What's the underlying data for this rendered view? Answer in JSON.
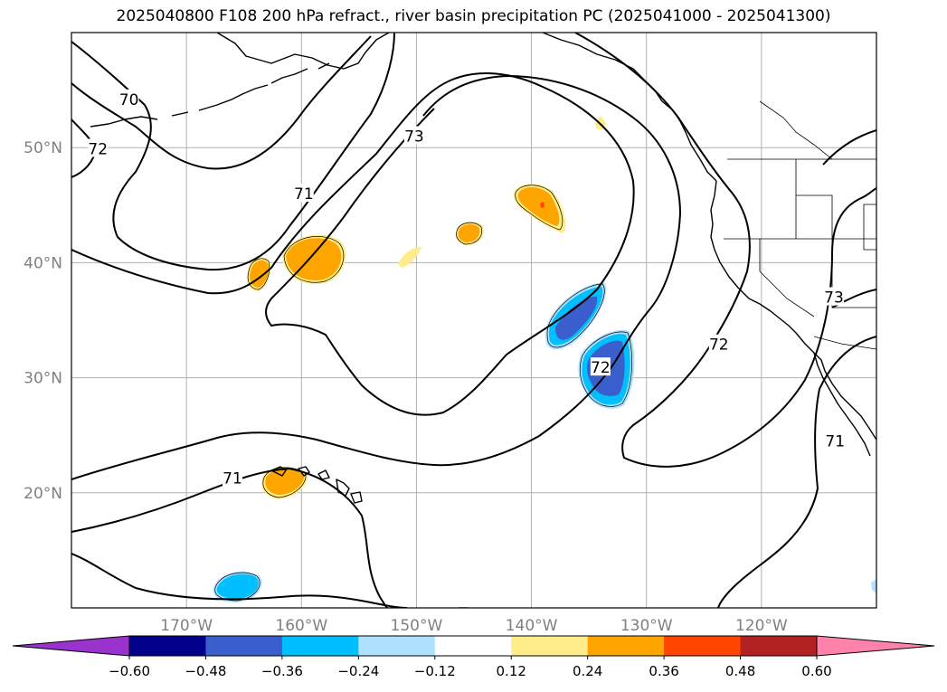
{
  "title": "2025040800 F108 200 hPa refract., river basin precipitation PC (2025041000 - 2025041300)",
  "map": {
    "region": {
      "lon_min": -180,
      "lon_max": -110,
      "lat_min": 10,
      "lat_max": 60
    },
    "lat_ticks": [
      {
        "value": 50,
        "label": "50°N"
      },
      {
        "value": 40,
        "label": "40°N"
      },
      {
        "value": 30,
        "label": "30°N"
      },
      {
        "value": 20,
        "label": "20°N"
      }
    ],
    "lon_ticks": [
      {
        "value": -170,
        "label": "170°W"
      },
      {
        "value": -160,
        "label": "160°W"
      },
      {
        "value": -150,
        "label": "150°W"
      },
      {
        "value": -140,
        "label": "140°W"
      },
      {
        "value": -130,
        "label": "130°W"
      },
      {
        "value": -120,
        "label": "120°W"
      }
    ],
    "contour_labels": [
      {
        "text": "70",
        "lon": -175,
        "lat": 54.2
      },
      {
        "text": "72",
        "lon": -177.7,
        "lat": 49.9
      },
      {
        "text": "73",
        "lon": -150.2,
        "lat": 51.0
      },
      {
        "text": "71",
        "lon": -159.8,
        "lat": 46.0
      },
      {
        "text": "72",
        "lon": -134,
        "lat": 30.9
      },
      {
        "text": "72",
        "lon": -123.7,
        "lat": 32.9
      },
      {
        "text": "73",
        "lon": -113.7,
        "lat": 37
      },
      {
        "text": "71",
        "lon": -113.6,
        "lat": 24.5
      },
      {
        "text": "71",
        "lon": -166,
        "lat": 21.3
      }
    ],
    "colors": {
      "coast": "#000000",
      "grid": "#b0b0b0",
      "tick_label": "#808080"
    }
  },
  "colorbar": {
    "colors": [
      "#9a32cd",
      "#00008b",
      "#3a5fcd",
      "#00bfff",
      "#b0e2ff",
      "#ffffff",
      "#ffec8b",
      "#ffa500",
      "#ff4500",
      "#b22222",
      "#ff82ab"
    ],
    "tick_labels": [
      "−0.60",
      "−0.48",
      "−0.36",
      "−0.24",
      "−0.12",
      "0.12",
      "0.24",
      "0.36",
      "0.48",
      "0.60"
    ]
  }
}
